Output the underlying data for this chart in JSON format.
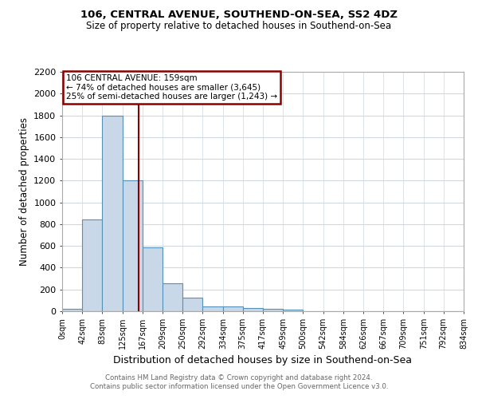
{
  "title1": "106, CENTRAL AVENUE, SOUTHEND-ON-SEA, SS2 4DZ",
  "title2": "Size of property relative to detached houses in Southend-on-Sea",
  "xlabel": "Distribution of detached houses by size in Southend-on-Sea",
  "ylabel": "Number of detached properties",
  "footer1": "Contains HM Land Registry data © Crown copyright and database right 2024.",
  "footer2": "Contains public sector information licensed under the Open Government Licence v3.0.",
  "bin_edges": [
    0,
    42,
    83,
    125,
    167,
    209,
    250,
    292,
    334,
    375,
    417,
    459,
    500,
    542,
    584,
    626,
    667,
    709,
    751,
    792,
    834
  ],
  "bar_heights": [
    25,
    840,
    1800,
    1200,
    590,
    255,
    125,
    45,
    45,
    30,
    20,
    15,
    0,
    0,
    0,
    0,
    0,
    0,
    0,
    0
  ],
  "bar_color": "#c8d8e8",
  "bar_edge_color": "#5590b8",
  "grid_color": "#d0d8e0",
  "vline_x": 159,
  "vline_color": "#8b0000",
  "annotation_line1": "106 CENTRAL AVENUE: 159sqm",
  "annotation_line2": "← 74% of detached houses are smaller (3,645)",
  "annotation_line3": "25% of semi-detached houses are larger (1,243) →",
  "annotation_box_color": "#8b0000",
  "ylim": [
    0,
    2200
  ],
  "xlim": [
    0,
    834
  ],
  "tick_labels": [
    "0sqm",
    "42sqm",
    "83sqm",
    "125sqm",
    "167sqm",
    "209sqm",
    "250sqm",
    "292sqm",
    "334sqm",
    "375sqm",
    "417sqm",
    "459sqm",
    "500sqm",
    "542sqm",
    "584sqm",
    "626sqm",
    "667sqm",
    "709sqm",
    "751sqm",
    "792sqm",
    "834sqm"
  ],
  "tick_positions": [
    0,
    42,
    83,
    125,
    167,
    209,
    250,
    292,
    334,
    375,
    417,
    459,
    500,
    542,
    584,
    626,
    667,
    709,
    751,
    792,
    834
  ],
  "ytick_positions": [
    0,
    200,
    400,
    600,
    800,
    1000,
    1200,
    1400,
    1600,
    1800,
    2000,
    2200
  ],
  "fig_width": 6.0,
  "fig_height": 5.0,
  "dpi": 100
}
